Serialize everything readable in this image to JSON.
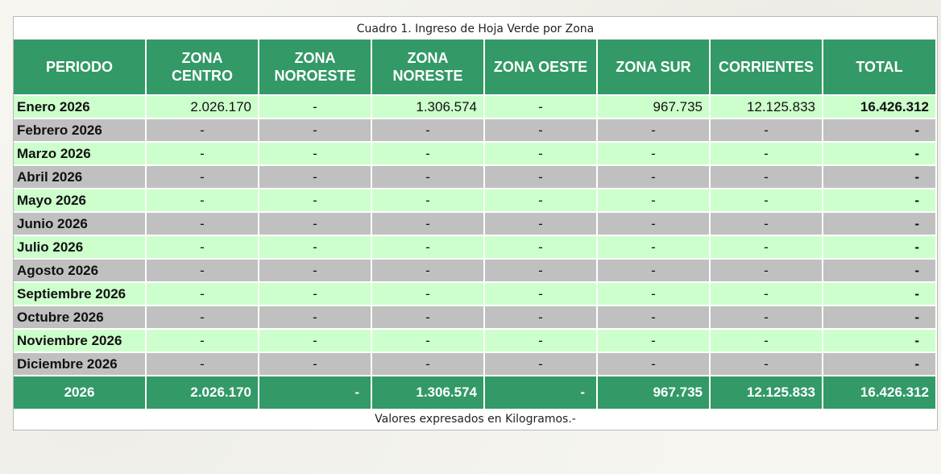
{
  "table": {
    "title": "Cuadro 1. Ingreso de Hoja Verde por Zona",
    "footnote": "Valores expresados en Kilogramos.-",
    "headers": [
      "PERIODO",
      "ZONA CENTRO",
      "ZONA NOROESTE",
      "ZONA NORESTE",
      "ZONA OESTE",
      "ZONA SUR",
      "CORRIENTES",
      "TOTAL"
    ],
    "rows": [
      {
        "periodo": "Enero 2026",
        "centro": "2.026.170",
        "noroeste": "-",
        "noreste": "1.306.574",
        "oeste": "-",
        "sur": "967.735",
        "corrientes": "12.125.833",
        "total": "16.426.312"
      },
      {
        "periodo": "Febrero 2026",
        "centro": "-",
        "noroeste": "-",
        "noreste": "-",
        "oeste": "-",
        "sur": "-",
        "corrientes": "-",
        "total": "-"
      },
      {
        "periodo": "Marzo 2026",
        "centro": "-",
        "noroeste": "-",
        "noreste": "-",
        "oeste": "-",
        "sur": "-",
        "corrientes": "-",
        "total": "-"
      },
      {
        "periodo": "Abril 2026",
        "centro": "-",
        "noroeste": "-",
        "noreste": "-",
        "oeste": "-",
        "sur": "-",
        "corrientes": "-",
        "total": "-"
      },
      {
        "periodo": "Mayo 2026",
        "centro": "-",
        "noroeste": "-",
        "noreste": "-",
        "oeste": "-",
        "sur": "-",
        "corrientes": "-",
        "total": "-"
      },
      {
        "periodo": "Junio 2026",
        "centro": "-",
        "noroeste": "-",
        "noreste": "-",
        "oeste": "-",
        "sur": "-",
        "corrientes": "-",
        "total": "-"
      },
      {
        "periodo": "Julio 2026",
        "centro": "-",
        "noroeste": "-",
        "noreste": "-",
        "oeste": "-",
        "sur": "-",
        "corrientes": "-",
        "total": "-"
      },
      {
        "periodo": "Agosto 2026",
        "centro": "-",
        "noroeste": "-",
        "noreste": "-",
        "oeste": "-",
        "sur": "-",
        "corrientes": "-",
        "total": "-"
      },
      {
        "periodo": "Septiembre 2026",
        "centro": "-",
        "noroeste": "-",
        "noreste": "-",
        "oeste": "-",
        "sur": "-",
        "corrientes": "-",
        "total": "-"
      },
      {
        "periodo": "Octubre 2026",
        "centro": "-",
        "noroeste": "-",
        "noreste": "-",
        "oeste": "-",
        "sur": "-",
        "corrientes": "-",
        "total": "-"
      },
      {
        "periodo": "Noviembre 2026",
        "centro": "-",
        "noroeste": "-",
        "noreste": "-",
        "oeste": "-",
        "sur": "-",
        "corrientes": "-",
        "total": "-"
      },
      {
        "periodo": "Diciembre 2026",
        "centro": "-",
        "noroeste": "-",
        "noreste": "-",
        "oeste": "-",
        "sur": "-",
        "corrientes": "-",
        "total": "-"
      }
    ],
    "totals": {
      "periodo": "2026",
      "centro": "2.026.170",
      "noroeste": "-",
      "noreste": "1.306.574",
      "oeste": "-",
      "sur": "967.735",
      "corrientes": "12.125.833",
      "total": "16.426.312"
    }
  },
  "colors": {
    "header_green": "#339966",
    "row_light_green": "#ccffcc",
    "row_gray": "#c0c0c0"
  }
}
